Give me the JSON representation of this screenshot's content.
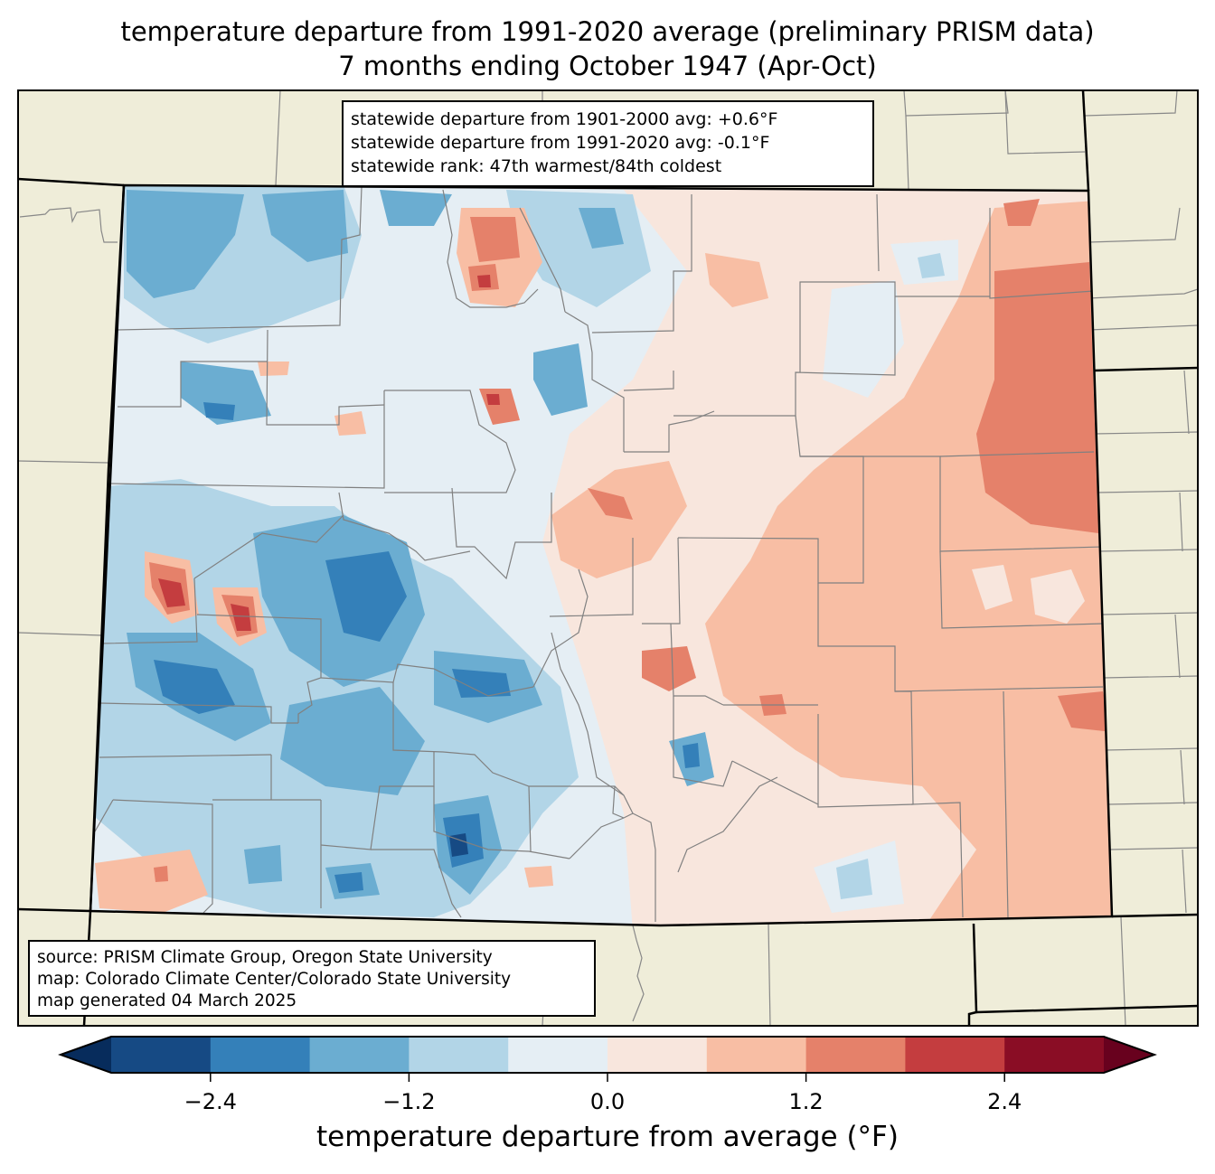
{
  "title": {
    "line1": "temperature departure from 1991-2020 average (preliminary PRISM data)",
    "line2": "7 months ending October 1947 (Apr-Oct)"
  },
  "stats_box": {
    "line1": "statewide departure from 1901-2000 avg: +0.6°F",
    "line2": "statewide departure from 1991-2020 avg: -0.1°F",
    "line3": "statewide rank: 47th warmest/84th coldest"
  },
  "source_box": {
    "line1": "source: PRISM Climate Group, Oregon State University",
    "line2": "map: Colorado Climate Center/Colorado State University",
    "line3": "map generated 04 March 2025"
  },
  "colorbar": {
    "label": "temperature departure from average (°F)",
    "ticks": [
      "−2.4",
      "−1.2",
      "0.0",
      "1.2",
      "2.4"
    ],
    "tick_values": [
      -2.4,
      -1.2,
      0.0,
      1.2,
      2.4
    ],
    "bounds": [
      -3.0,
      -2.4,
      -1.8,
      -1.2,
      -0.6,
      0.0,
      0.6,
      1.2,
      1.8,
      2.4,
      3.0
    ],
    "extend": "both",
    "colors": [
      "#164a84",
      "#3480b9",
      "#6badd1",
      "#b2d5e7",
      "#e5eef4",
      "#f8e6dd",
      "#f8bea4",
      "#e5816a",
      "#c43d3f",
      "#8a0d25"
    ],
    "under_color": "#072c5c",
    "over_color": "#68011e"
  },
  "map": {
    "land_color": "#efedd9",
    "state_line_color": "#000000",
    "county_line_color": "#808080"
  }
}
